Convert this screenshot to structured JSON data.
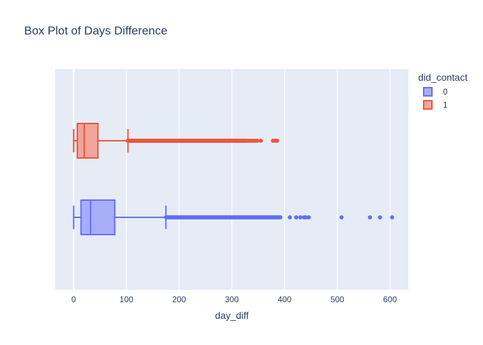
{
  "chart_data": {
    "type": "box",
    "orientation": "horizontal",
    "title": "Box Plot of Days Difference",
    "xlabel": "day_diff",
    "ylabel": "",
    "xlim": [
      -35,
      635
    ],
    "x_ticks": [
      0,
      100,
      200,
      300,
      400,
      500,
      600
    ],
    "grid": true,
    "legend": {
      "title": "did_contact",
      "position": "top-right"
    },
    "series": [
      {
        "name": "0",
        "color": "#636efa",
        "fill": "#a8adf8",
        "min": 0,
        "q1": 14,
        "median": 32,
        "q3": 78,
        "upper_fence": 175,
        "outlier_dense_range": [
          175,
          392
        ],
        "outliers": [
          410,
          422,
          430,
          437,
          440,
          446,
          508,
          562,
          581,
          604
        ]
      },
      {
        "name": "1",
        "color": "#ef553b",
        "fill": "#f0a59a",
        "min": 0,
        "q1": 7,
        "median": 20,
        "q3": 46,
        "upper_fence": 103,
        "outlier_dense_range": [
          103,
          327
        ],
        "outliers": [
          329,
          332,
          336,
          340,
          344,
          348,
          355,
          378,
          382,
          386
        ]
      }
    ]
  }
}
